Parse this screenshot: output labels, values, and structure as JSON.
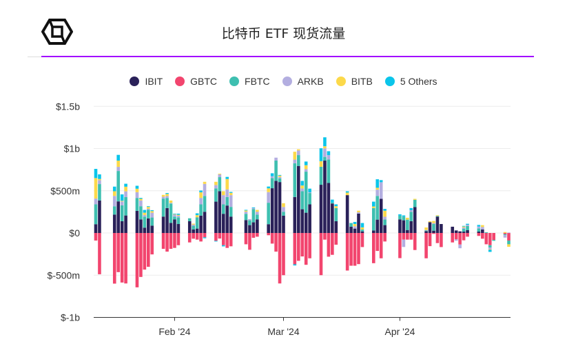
{
  "header": {
    "title": "比特币 ETF 现货流量",
    "logo": "cube-logo"
  },
  "chart_data": {
    "type": "bar",
    "stacked": true,
    "title": "比特币 ETF 现货流量",
    "unit": "USD millions",
    "ylim": [
      -1000,
      1500
    ],
    "y_ticks": [
      {
        "value": 1500,
        "label": "$1.5b"
      },
      {
        "value": 1000,
        "label": "$1b"
      },
      {
        "value": 500,
        "label": "$500m"
      },
      {
        "value": 0,
        "label": "$0"
      },
      {
        "value": -500,
        "label": "$-500m"
      },
      {
        "value": -1000,
        "label": "$-1b"
      }
    ],
    "x_ticks": [
      {
        "date": "2024-02-01",
        "label": "Feb '24"
      },
      {
        "date": "2024-03-01",
        "label": "Mar '24"
      },
      {
        "date": "2024-04-01",
        "label": "Apr '24"
      }
    ],
    "grid": true,
    "legend_position": "top-center",
    "dates": [
      "2024-01-11",
      "2024-01-12",
      "2024-01-16",
      "2024-01-17",
      "2024-01-18",
      "2024-01-19",
      "2024-01-22",
      "2024-01-23",
      "2024-01-24",
      "2024-01-25",
      "2024-01-26",
      "2024-01-29",
      "2024-01-30",
      "2024-01-31",
      "2024-02-01",
      "2024-02-02",
      "2024-02-05",
      "2024-02-06",
      "2024-02-07",
      "2024-02-08",
      "2024-02-09",
      "2024-02-12",
      "2024-02-13",
      "2024-02-14",
      "2024-02-15",
      "2024-02-16",
      "2024-02-20",
      "2024-02-21",
      "2024-02-22",
      "2024-02-23",
      "2024-02-26",
      "2024-02-27",
      "2024-02-28",
      "2024-02-29",
      "2024-03-01",
      "2024-03-04",
      "2024-03-05",
      "2024-03-06",
      "2024-03-07",
      "2024-03-08",
      "2024-03-11",
      "2024-03-12",
      "2024-03-13",
      "2024-03-14",
      "2024-03-15",
      "2024-03-18",
      "2024-03-19",
      "2024-03-20",
      "2024-03-21",
      "2024-03-22",
      "2024-03-25",
      "2024-03-26",
      "2024-03-27",
      "2024-03-28",
      "2024-04-01",
      "2024-04-02",
      "2024-04-03",
      "2024-04-04",
      "2024-04-05",
      "2024-04-08",
      "2024-04-09",
      "2024-04-10",
      "2024-04-11",
      "2024-04-12",
      "2024-04-15",
      "2024-04-16",
      "2024-04-17",
      "2024-04-18",
      "2024-04-19",
      "2024-04-22",
      "2024-04-23",
      "2024-04-24",
      "2024-04-25",
      "2024-04-26",
      "2024-04-29",
      "2024-04-30"
    ],
    "series": [
      {
        "name": "IBIT",
        "color": "#2a2159",
        "values": [
          104,
          385,
          218,
          374,
          139,
          207,
          262,
          161,
          63,
          172,
          87,
          194,
          295,
          120,
          161,
          106,
          139,
          41,
          52,
          205,
          251,
          371,
          494,
          227,
          325,
          194,
          153,
          93,
          126,
          161,
          104,
          530,
          617,
          603,
          205,
          426,
          794,
          281,
          240,
          339,
          571,
          857,
          592,
          349,
          139,
          448,
          74,
          52,
          229,
          19,
          30,
          158,
          404,
          93,
          161,
          150,
          35,
          139,
          306,
          22,
          128,
          27,
          194,
          106,
          74,
          30,
          19,
          16,
          33,
          16,
          41,
          0,
          0,
          0,
          0,
          0
        ]
      },
      {
        "name": "GBTC",
        "color": "#f2456e",
        "values": [
          -90,
          -489,
          -600,
          -464,
          -587,
          -598,
          -644,
          -521,
          -434,
          -401,
          -254,
          -188,
          -221,
          -188,
          -177,
          -145,
          -112,
          -68,
          -79,
          -101,
          -52,
          -93,
          -66,
          -145,
          -177,
          -158,
          -134,
          -199,
          -57,
          -44,
          -27,
          -126,
          -221,
          -598,
          -500,
          -371,
          -330,
          -278,
          -377,
          -300,
          -500,
          -79,
          -281,
          -259,
          -139,
          -445,
          -388,
          -388,
          -369,
          -167,
          -358,
          -213,
          -300,
          -101,
          -298,
          -79,
          -79,
          -79,
          -202,
          -300,
          -156,
          -11,
          -120,
          -167,
          -112,
          -76,
          -137,
          -87,
          -44,
          -35,
          -68,
          -134,
          -145,
          -82,
          -14,
          -90
        ]
      },
      {
        "name": "FBTC",
        "color": "#3ebfb0",
        "values": [
          235,
          194,
          98,
          360,
          188,
          218,
          153,
          156,
          131,
          104,
          96,
          213,
          120,
          229,
          33,
          79,
          35,
          44,
          134,
          134,
          188,
          156,
          167,
          112,
          101,
          115,
          74,
          57,
          158,
          57,
          254,
          120,
          240,
          44,
          46,
          399,
          128,
          213,
          486,
          134,
          213,
          44,
          278,
          11,
          156,
          0,
          44,
          0,
          0,
          22,
          265,
          281,
          0,
          66,
          44,
          44,
          123,
          112,
          87,
          8,
          0,
          79,
          8,
          0,
          0,
          0,
          0,
          33,
          49,
          38,
          0,
          8,
          -27,
          -11,
          -11,
          -44
        ]
      },
      {
        "name": "ARKB",
        "color": "#b3aee0",
        "values": [
          68,
          46,
          123,
          49,
          46,
          68,
          68,
          68,
          19,
          11,
          57,
          22,
          22,
          8,
          25,
          19,
          0,
          14,
          0,
          76,
          142,
          41,
          33,
          109,
          90,
          139,
          25,
          14,
          11,
          33,
          126,
          22,
          35,
          16,
          57,
          44,
          55,
          33,
          30,
          8,
          0,
          101,
          52,
          0,
          0,
          0,
          0,
          27,
          16,
          0,
          0,
          74,
          197,
          33,
          0,
          -87,
          0,
          19,
          0,
          5,
          0,
          11,
          0,
          0,
          0,
          -16,
          -44,
          16,
          16,
          22,
          30,
          0,
          -22,
          0,
          -30,
          5
        ]
      },
      {
        "name": "BITB",
        "color": "#fcd94a",
        "values": [
          243,
          14,
          55,
          74,
          8,
          55,
          41,
          19,
          27,
          22,
          19,
          22,
          25,
          27,
          5,
          11,
          0,
          11,
          25,
          66,
          25,
          38,
          8,
          46,
          123,
          27,
          14,
          0,
          0,
          22,
          44,
          0,
          0,
          16,
          44,
          93,
          14,
          35,
          46,
          0,
          66,
          25,
          0,
          0,
          22,
          30,
          0,
          27,
          19,
          25,
          19,
          22,
          0,
          71,
          0,
          0,
          22,
          0,
          11,
          30,
          11,
          25,
          8,
          0,
          0,
          0,
          0,
          11,
          0,
          0,
          22,
          0,
          -5,
          0,
          11,
          -30
        ]
      },
      {
        "name": "5 Others",
        "color": "#0bc5ea",
        "values": [
          109,
          55,
          55,
          68,
          76,
          35,
          35,
          11,
          33,
          8,
          11,
          0,
          11,
          0,
          5,
          14,
          0,
          0,
          22,
          22,
          -11,
          -8,
          0,
          -14,
          25,
          11,
          8,
          0,
          8,
          0,
          22,
          35,
          0,
          8,
          0,
          -14,
          0,
          55,
          44,
          44,
          153,
          106,
          46,
          35,
          22,
          16,
          0,
          25,
          0,
          52,
          57,
          101,
          25,
          22,
          16,
          14,
          0,
          25,
          0,
          0,
          0,
          0,
          0,
          0,
          0,
          0,
          0,
          8,
          11,
          19,
          0,
          0,
          -25,
          0,
          0,
          0
        ]
      }
    ]
  }
}
